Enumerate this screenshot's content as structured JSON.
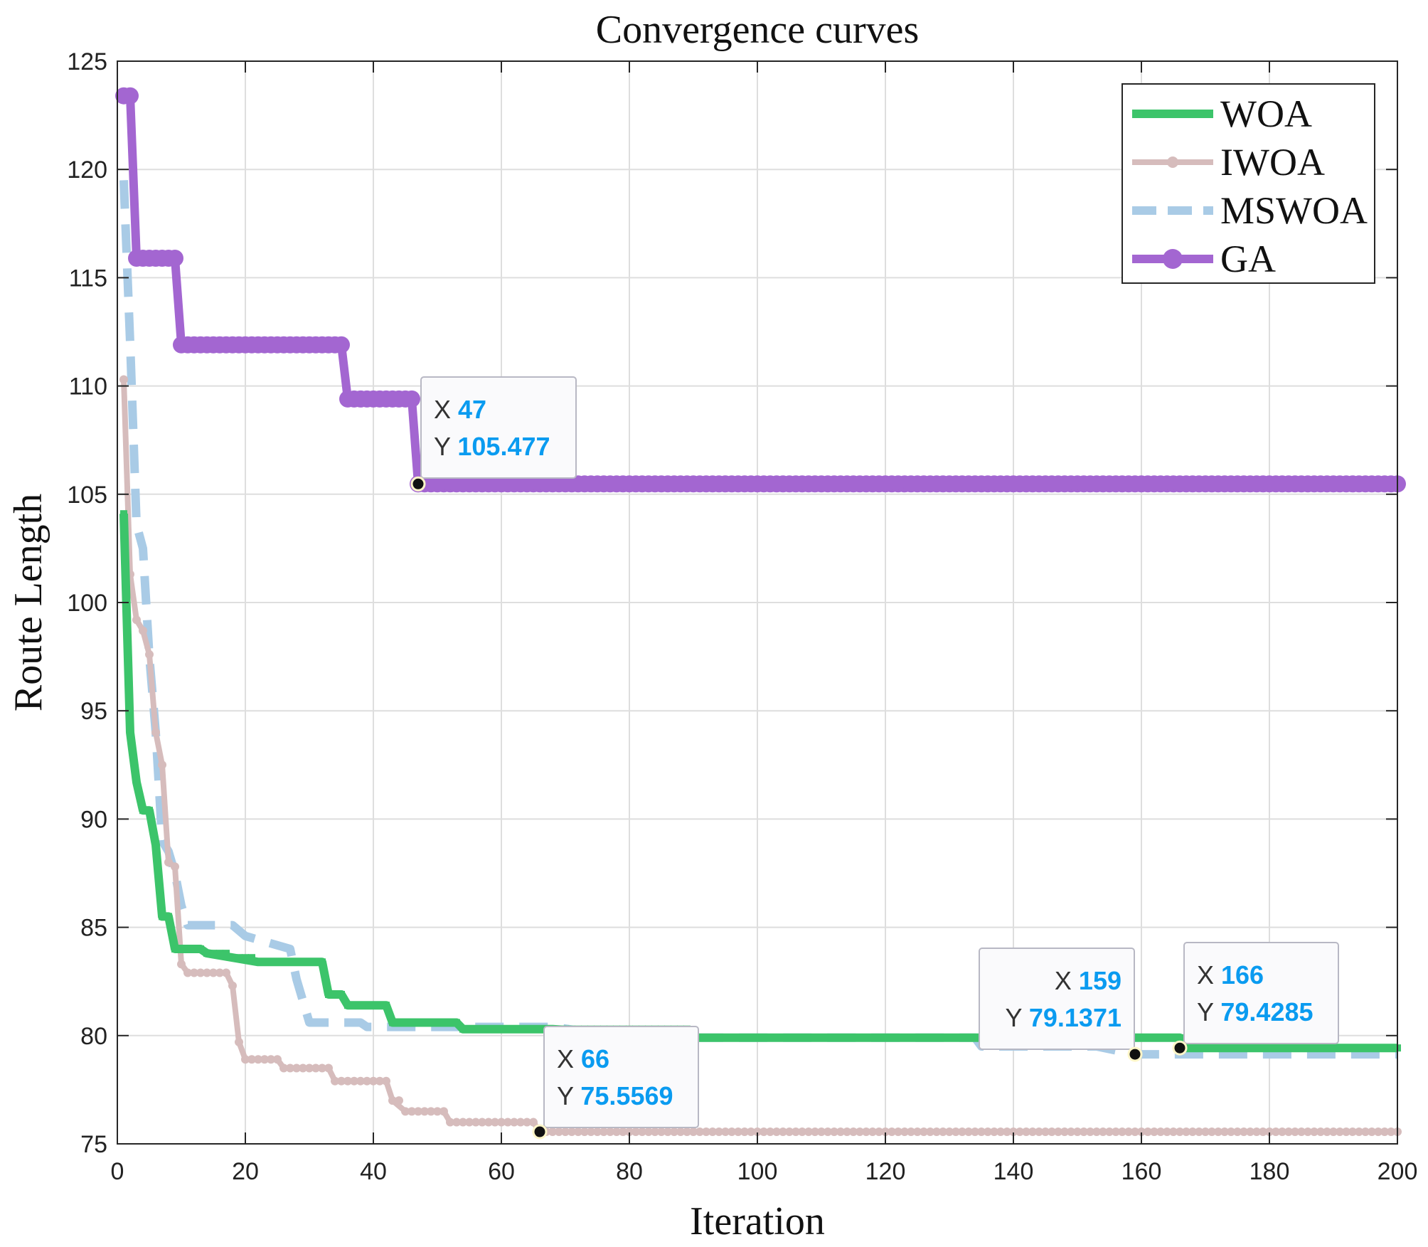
{
  "chart_data": {
    "type": "line",
    "title": "Convergence curves",
    "xlabel": "Iteration",
    "ylabel": "Route Length",
    "xlim": [
      0,
      200
    ],
    "ylim": [
      75,
      125
    ],
    "xticks": [
      "0",
      "20",
      "40",
      "60",
      "80",
      "100",
      "120",
      "140",
      "160",
      "180",
      "200"
    ],
    "yticks": [
      "75",
      "80",
      "85",
      "90",
      "95",
      "100",
      "105",
      "110",
      "115",
      "120",
      "125"
    ],
    "grid": true,
    "legend_position": "top-right",
    "series": [
      {
        "name": "WOA",
        "color": "#3cc46a",
        "style": "solid-square-markers",
        "points": [
          [
            1,
            104.1
          ],
          [
            2,
            94
          ],
          [
            3,
            91.7
          ],
          [
            4,
            90.4
          ],
          [
            5,
            90.4
          ],
          [
            6,
            88.8
          ],
          [
            7,
            85.5
          ],
          [
            8,
            85.5
          ],
          [
            9,
            84
          ],
          [
            13,
            84
          ],
          [
            14,
            83.8
          ],
          [
            18,
            83.6
          ],
          [
            22,
            83.4
          ],
          [
            32,
            83.4
          ],
          [
            33,
            81.9
          ],
          [
            35,
            81.9
          ],
          [
            36,
            81.4
          ],
          [
            42,
            81.4
          ],
          [
            43,
            80.6
          ],
          [
            53,
            80.6
          ],
          [
            54,
            80.3
          ],
          [
            68,
            80.3
          ],
          [
            90,
            79.9
          ],
          [
            166,
            79.9
          ],
          [
            166,
            79.4285
          ],
          [
            200,
            79.4285
          ]
        ]
      },
      {
        "name": "IWOA",
        "color": "#d6bcbc",
        "style": "solid-dot-markers",
        "points": [
          [
            1,
            110.3
          ],
          [
            2,
            101.3
          ],
          [
            3,
            99.2
          ],
          [
            4,
            98.7
          ],
          [
            5,
            97.6
          ],
          [
            6,
            94
          ],
          [
            7,
            92.5
          ],
          [
            8,
            88
          ],
          [
            9,
            87.8
          ],
          [
            10,
            83.3
          ],
          [
            11,
            82.9
          ],
          [
            17,
            82.9
          ],
          [
            18,
            82.3
          ],
          [
            19,
            79.7
          ],
          [
            20,
            78.9
          ],
          [
            25,
            78.9
          ],
          [
            26,
            78.5
          ],
          [
            33,
            78.5
          ],
          [
            34,
            77.9
          ],
          [
            42,
            77.9
          ],
          [
            43,
            77
          ],
          [
            45,
            76.5
          ],
          [
            51,
            76.5
          ],
          [
            52,
            76
          ],
          [
            65,
            76
          ],
          [
            66,
            75.5569
          ],
          [
            200,
            75.5569
          ]
        ]
      },
      {
        "name": "MSWOA",
        "color": "#a9cbe6",
        "style": "dashed",
        "points": [
          [
            1,
            119.5
          ],
          [
            2,
            112
          ],
          [
            3,
            103.6
          ],
          [
            4,
            102.5
          ],
          [
            5,
            97.5
          ],
          [
            6,
            94
          ],
          [
            7,
            89
          ],
          [
            8,
            88.5
          ],
          [
            9,
            87.5
          ],
          [
            10,
            86
          ],
          [
            11,
            85.1
          ],
          [
            18,
            85.1
          ],
          [
            20,
            84.6
          ],
          [
            27,
            84
          ],
          [
            28,
            82.6
          ],
          [
            30,
            80.6
          ],
          [
            38,
            80.6
          ],
          [
            39,
            80.4
          ],
          [
            68,
            80.4
          ],
          [
            80,
            79.9
          ],
          [
            134,
            79.9
          ],
          [
            135,
            79.5
          ],
          [
            153,
            79.5
          ],
          [
            159,
            79.1371
          ],
          [
            200,
            79.1371
          ]
        ]
      },
      {
        "name": "GA",
        "color": "#a366d1",
        "style": "solid-large-dot-markers",
        "points": [
          [
            1,
            123.4
          ],
          [
            2,
            123.4
          ],
          [
            3,
            115.9
          ],
          [
            9,
            115.9
          ],
          [
            10,
            111.9
          ],
          [
            35,
            111.9
          ],
          [
            36,
            109.4
          ],
          [
            46,
            109.4
          ],
          [
            47,
            105.477
          ],
          [
            200,
            105.477
          ]
        ]
      }
    ],
    "datatips": [
      {
        "series": "GA",
        "x": 47,
        "y": 105.477,
        "x_label": "X",
        "y_label": "Y",
        "x_text": "47",
        "y_text": "105.477"
      },
      {
        "series": "IWOA",
        "x": 66,
        "y": 75.5569,
        "x_label": "X",
        "y_label": "Y",
        "x_text": "66",
        "y_text": "75.5569"
      },
      {
        "series": "MSWOA",
        "x": 159,
        "y": 79.1371,
        "x_label": "X",
        "y_label": "Y",
        "x_text": "159",
        "y_text": "79.1371"
      },
      {
        "series": "WOA",
        "x": 166,
        "y": 79.4285,
        "x_label": "X",
        "y_label": "Y",
        "x_text": "166",
        "y_text": "79.4285"
      }
    ]
  }
}
